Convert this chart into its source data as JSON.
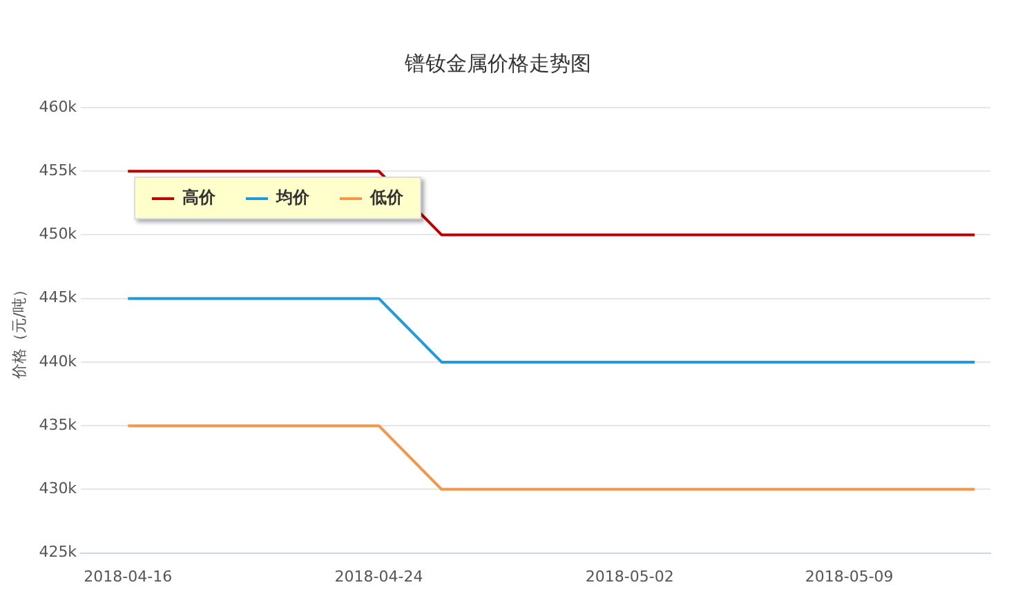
{
  "chart_data": {
    "type": "line",
    "title": "镨钕金属价格走势图",
    "ylabel": "价格（元/吨）",
    "xlim": [
      "2018-04-14T12:00",
      "2018-05-13T12:00"
    ],
    "xticks": [
      "2018-04-16",
      "2018-04-24",
      "2018-05-02",
      "2018-05-09"
    ],
    "ylim": [
      425000,
      460000
    ],
    "yticks": [
      {
        "value": 425000,
        "label": "425k"
      },
      {
        "value": 430000,
        "label": "430k"
      },
      {
        "value": 435000,
        "label": "435k"
      },
      {
        "value": 440000,
        "label": "440k"
      },
      {
        "value": 445000,
        "label": "445k"
      },
      {
        "value": 450000,
        "label": "450k"
      },
      {
        "value": 455000,
        "label": "455k"
      },
      {
        "value": 460000,
        "label": "460k"
      }
    ],
    "x": [
      "2018-04-16",
      "2018-04-24",
      "2018-04-26",
      "2018-05-13"
    ],
    "series": [
      {
        "name": "高价",
        "color": "#c00000",
        "values": [
          455000,
          455000,
          450000,
          450000
        ]
      },
      {
        "name": "均价",
        "color": "#1e9be0",
        "values": [
          445000,
          445000,
          440000,
          440000
        ]
      },
      {
        "name": "低价",
        "color": "#f79646",
        "values": [
          435000,
          435000,
          430000,
          430000
        ]
      }
    ],
    "grid": "y",
    "legend": "top left",
    "marker": "none",
    "line_style": "solid"
  }
}
